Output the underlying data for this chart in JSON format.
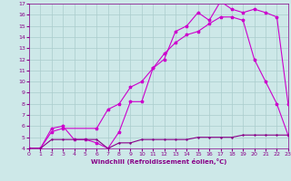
{
  "xlabel": "Windchill (Refroidissement éolien,°C)",
  "background_color": "#cde8e8",
  "grid_color": "#aacccc",
  "line_color_zigzag": "#cc00cc",
  "line_color_diagonal": "#cc00cc",
  "line_color_flat": "#880088",
  "xlim": [
    0,
    23
  ],
  "ylim": [
    4,
    17
  ],
  "xticks": [
    0,
    1,
    2,
    3,
    4,
    5,
    6,
    7,
    8,
    9,
    10,
    11,
    12,
    13,
    14,
    15,
    16,
    17,
    18,
    19,
    20,
    21,
    22,
    23
  ],
  "yticks": [
    4,
    5,
    6,
    7,
    8,
    9,
    10,
    11,
    12,
    13,
    14,
    15,
    16,
    17
  ],
  "zigzag_x": [
    0,
    1,
    2,
    3,
    4,
    5,
    6,
    7,
    8,
    9,
    10,
    11,
    12,
    13,
    14,
    15,
    16,
    17,
    18,
    19,
    20,
    21,
    22,
    23
  ],
  "zigzag_y": [
    4,
    4,
    5.8,
    6.0,
    4.8,
    4.8,
    4.5,
    4.0,
    5.5,
    8.2,
    8.2,
    11.2,
    12.0,
    14.5,
    15.0,
    16.2,
    15.5,
    17.2,
    16.5,
    16.2,
    16.5,
    16.2,
    15.8,
    8.0
  ],
  "diagonal_x": [
    0,
    1,
    2,
    3,
    6,
    7,
    8,
    9,
    10,
    11,
    12,
    13,
    14,
    15,
    16,
    17,
    18,
    19,
    20,
    21,
    22,
    23
  ],
  "diagonal_y": [
    4,
    4,
    5.5,
    5.8,
    5.8,
    7.5,
    8.0,
    9.5,
    10.0,
    11.2,
    12.5,
    13.5,
    14.2,
    14.5,
    15.2,
    15.8,
    15.8,
    15.5,
    12.0,
    10.0,
    8.0,
    5.2
  ],
  "flat_x": [
    0,
    1,
    2,
    3,
    4,
    5,
    6,
    7,
    8,
    9,
    10,
    11,
    12,
    13,
    14,
    15,
    16,
    17,
    18,
    19,
    20,
    21,
    22,
    23
  ],
  "flat_y": [
    4,
    4,
    4.8,
    4.8,
    4.8,
    4.8,
    4.8,
    4.0,
    4.5,
    4.5,
    4.8,
    4.8,
    4.8,
    4.8,
    4.8,
    5.0,
    5.0,
    5.0,
    5.0,
    5.2,
    5.2,
    5.2,
    5.2,
    5.2
  ]
}
